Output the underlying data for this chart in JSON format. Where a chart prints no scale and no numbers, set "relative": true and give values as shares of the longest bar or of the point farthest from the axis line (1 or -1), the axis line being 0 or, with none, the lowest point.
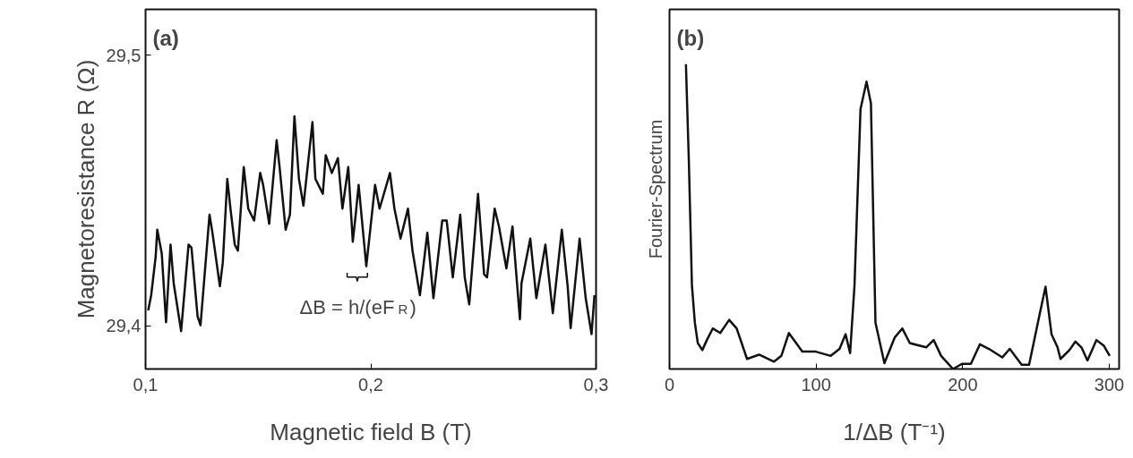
{
  "chart_data": [
    {
      "type": "line",
      "title": "(a)",
      "xlabel": "Magnetic field B (T)",
      "ylabel": "Magnetoresistance R (Ω)",
      "xlim": [
        0.1,
        0.3
      ],
      "ylim": [
        29.384,
        29.517
      ],
      "xticks": [
        {
          "value": 0.1,
          "label": "0,1"
        },
        {
          "value": 0.2,
          "label": "0,2"
        },
        {
          "value": 0.3,
          "label": "0,3"
        }
      ],
      "yticks": [
        {
          "value": 29.4,
          "label": "29,4"
        },
        {
          "value": 29.5,
          "label": "29,5"
        }
      ],
      "annotations": [
        {
          "text": "ΔB = h/(eF$_{R}$)",
          "x": 0.194,
          "y": 29.418
        }
      ],
      "series": [
        {
          "color": "#111111",
          "x": [
            0.1012,
            0.1025,
            0.1045,
            0.1052,
            0.1072,
            0.1091,
            0.1111,
            0.1125,
            0.1158,
            0.1191,
            0.1204,
            0.1231,
            0.1244,
            0.1284,
            0.1297,
            0.133,
            0.1343,
            0.1363,
            0.1377,
            0.1396,
            0.141,
            0.1436,
            0.1456,
            0.1482,
            0.1509,
            0.1522,
            0.1549,
            0.1582,
            0.1595,
            0.1622,
            0.1641,
            0.1661,
            0.1681,
            0.1701,
            0.1741,
            0.1754,
            0.1787,
            0.18,
            0.1827,
            0.1854,
            0.1874,
            0.19,
            0.192,
            0.1933,
            0.1946,
            0.198,
            0.2019,
            0.2039,
            0.2085,
            0.2105,
            0.2132,
            0.2165,
            0.2185,
            0.2218,
            0.2251,
            0.2278,
            0.2317,
            0.2337,
            0.2364,
            0.2397,
            0.2417,
            0.2437,
            0.2476,
            0.2503,
            0.2516,
            0.255,
            0.2569,
            0.2602,
            0.2629,
            0.2662,
            0.2669,
            0.2708,
            0.2735,
            0.2775,
            0.2808,
            0.2848,
            0.2874,
            0.2887,
            0.2927,
            0.2954,
            0.298,
            0.2993
          ],
          "values": [
            29.4057,
            29.4113,
            29.4256,
            29.4355,
            29.4267,
            29.4013,
            29.43,
            29.4157,
            29.398,
            29.43,
            29.4289,
            29.4035,
            29.4002,
            29.4411,
            29.4344,
            29.4146,
            29.4234,
            29.4543,
            29.4433,
            29.43,
            29.4278,
            29.4587,
            29.4433,
            29.4389,
            29.4565,
            29.4521,
            29.4377,
            29.4686,
            29.4587,
            29.4355,
            29.4411,
            29.4775,
            29.4543,
            29.4444,
            29.4753,
            29.4543,
            29.4488,
            29.4631,
            29.4565,
            29.462,
            29.4433,
            29.4587,
            29.4311,
            29.4411,
            29.4521,
            29.422,
            29.4521,
            29.4433,
            29.4565,
            29.4433,
            29.4322,
            29.4433,
            29.4278,
            29.4113,
            29.4344,
            29.4102,
            29.4389,
            29.4389,
            29.4179,
            29.4411,
            29.4179,
            29.4079,
            29.4488,
            29.419,
            29.4179,
            29.4433,
            29.4367,
            29.4212,
            29.4367,
            29.4024,
            29.4157,
            29.4322,
            29.4102,
            29.43,
            29.4046,
            29.4355,
            29.4146,
            29.3991,
            29.4322,
            29.4102,
            29.3969,
            29.4113
          ]
        }
      ]
    },
    {
      "type": "line",
      "title": "(b)",
      "xlabel": "1/ΔB (T⁻¹)",
      "ylabel": "Fourier-Spectrum",
      "relative": true,
      "tick_labels": "x",
      "xlim": [
        0,
        306.7
      ],
      "xticks": [
        0,
        100,
        200,
        300
      ],
      "series": [
        {
          "color": "#111111",
          "x": [
            11.2,
            13.2,
            15.3,
            17.3,
            19.3,
            22.4,
            25.5,
            29.5,
            34.6,
            40.7,
            45.8,
            52.9,
            61.1,
            71.3,
            76.3,
            81.4,
            90.6,
            99.8,
            110.0,
            116.0,
            120.1,
            123.2,
            126.2,
            130.3,
            134.4,
            137.4,
            140.5,
            146.6,
            153.7,
            158.8,
            163.9,
            175.1,
            180.2,
            185.3,
            193.4,
            199.5,
            205.6,
            211.7,
            217.9,
            227.0,
            232.1,
            240.2,
            245.3,
            252.5,
            256.5,
            260.6,
            264.7,
            266.7,
            272.8,
            276.9,
            281.0,
            285.1,
            291.2,
            296.3,
            300.3
          ],
          "values": [
            1.0,
            0.682,
            0.275,
            0.152,
            0.085,
            0.062,
            0.095,
            0.133,
            0.118,
            0.161,
            0.133,
            0.033,
            0.047,
            0.024,
            0.043,
            0.118,
            0.057,
            0.057,
            0.043,
            0.066,
            0.114,
            0.052,
            0.275,
            0.853,
            0.943,
            0.872,
            0.152,
            0.019,
            0.104,
            0.133,
            0.085,
            0.071,
            0.095,
            0.043,
            0.0,
            0.017,
            0.017,
            0.081,
            0.066,
            0.038,
            0.066,
            0.014,
            0.014,
            0.18,
            0.27,
            0.114,
            0.071,
            0.033,
            0.062,
            0.09,
            0.071,
            0.028,
            0.095,
            0.076,
            0.043
          ]
        }
      ]
    }
  ]
}
